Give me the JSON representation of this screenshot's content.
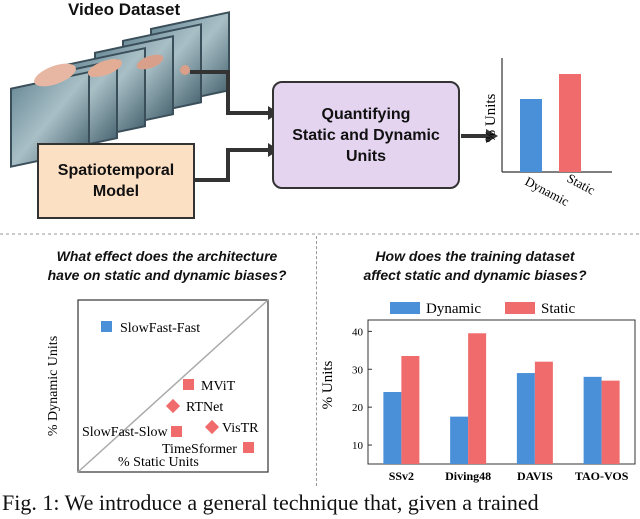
{
  "top": {
    "video_dataset_title": "Video Dataset",
    "model_box_line1": "Spatiotemporal",
    "model_box_line2": "Model",
    "quant_box_line1": "Quantifying",
    "quant_box_line2": "Static and Dynamic",
    "quant_box_line3": "Units",
    "mini_chart": {
      "ylabel": "% Units",
      "categories": [
        "Dynamic",
        "Static"
      ],
      "colors": [
        "#4a90d9",
        "#f06b6b"
      ]
    }
  },
  "left_panel": {
    "question_line1": "What effect does the architecture",
    "question_line2": "have on static and dynamic biases?",
    "xlabel": "% Static Units",
    "ylabel": "% Dynamic Units",
    "points": [
      {
        "label": "SlowFast-Fast",
        "marker": "square",
        "color": "#4a90d9"
      },
      {
        "label": "MViT",
        "marker": "square",
        "color": "#f06b6b"
      },
      {
        "label": "RTNet",
        "marker": "diamond",
        "color": "#f06b6b"
      },
      {
        "label": "VisTR",
        "marker": "diamond",
        "color": "#f06b6b"
      },
      {
        "label": "SlowFast-Slow",
        "marker": "square",
        "color": "#f06b6b"
      },
      {
        "label": "TimeSformer",
        "marker": "square",
        "color": "#f06b6b"
      }
    ]
  },
  "right_panel": {
    "question_line1": "How does the training dataset",
    "question_line2": "affect static and dynamic biases?"
  },
  "chart_data": {
    "type": "bar",
    "categories": [
      "SSv2",
      "Diving48",
      "DAVIS",
      "TAO-VOS"
    ],
    "series": [
      {
        "name": "Dynamic",
        "values": [
          24,
          17.5,
          29,
          28
        ],
        "color": "#4a90d9"
      },
      {
        "name": "Static",
        "values": [
          33.5,
          39.5,
          32,
          27
        ],
        "color": "#f06b6b"
      }
    ],
    "ylabel": "% Units",
    "yticks": [
      10,
      20,
      30,
      40
    ],
    "ylim": [
      5,
      43
    ],
    "legend_placement": "top",
    "grid": false
  },
  "caption": "Fig. 1: We introduce a general technique that, given a trained"
}
